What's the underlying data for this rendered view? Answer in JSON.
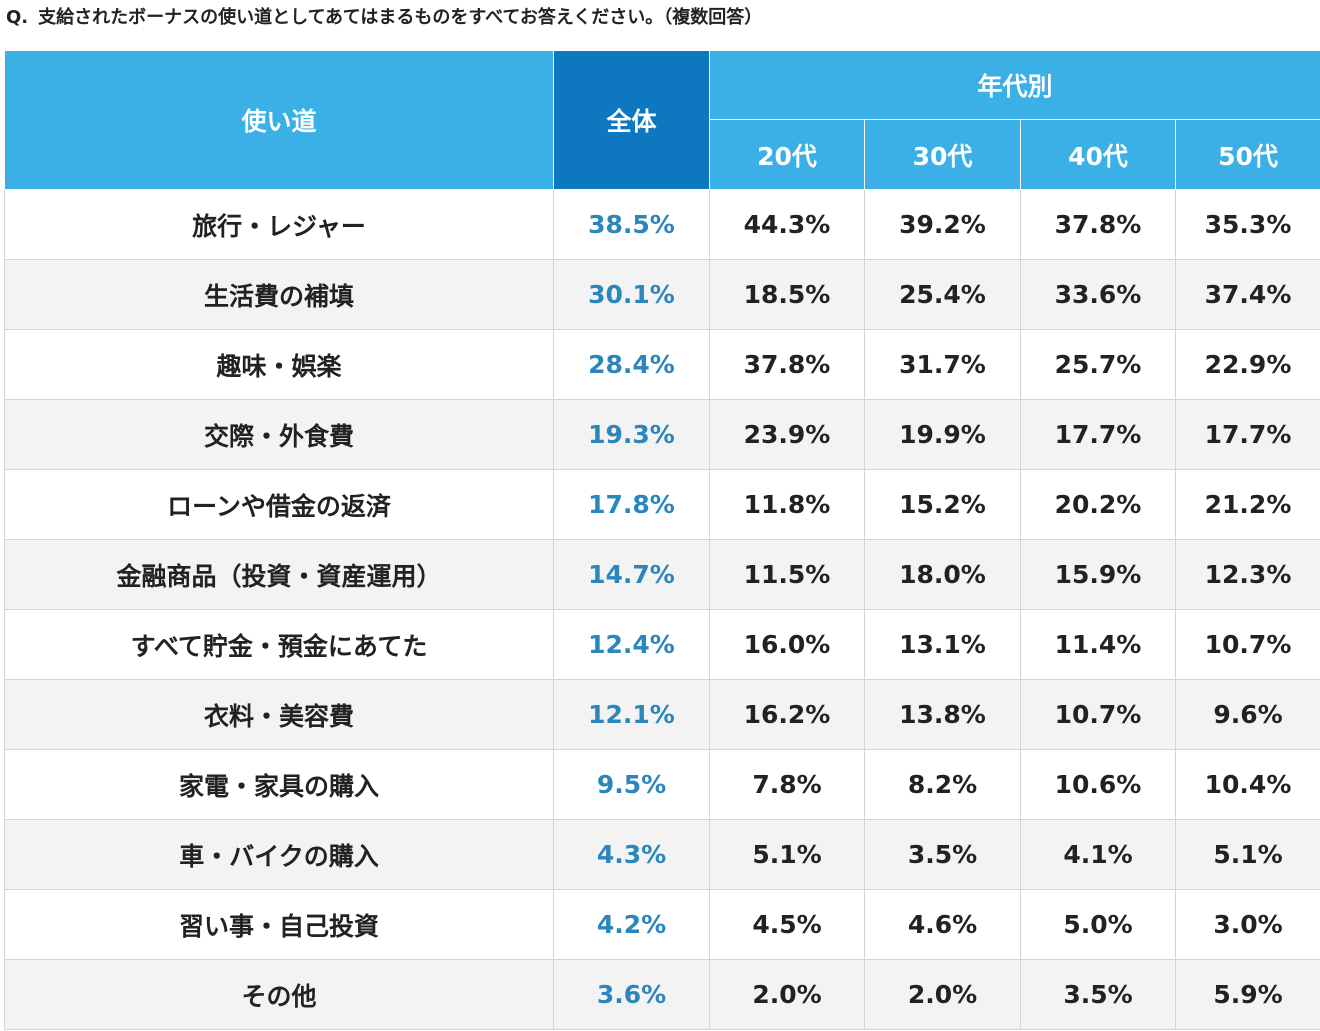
{
  "question": {
    "prefix": "Q.",
    "text": "支給されたボーナスの使い道としてあてはまるものをすべてお答えください。（複数回答）"
  },
  "table": {
    "headers": {
      "usage": "使い道",
      "total": "全体",
      "age_group": "年代別",
      "ages": [
        "20代",
        "30代",
        "40代",
        "50代"
      ]
    },
    "rows": [
      {
        "label": "旅行・レジャー",
        "total": "38.5%",
        "values": [
          "44.3%",
          "39.2%",
          "37.8%",
          "35.3%"
        ]
      },
      {
        "label": "生活費の補填",
        "total": "30.1%",
        "values": [
          "18.5%",
          "25.4%",
          "33.6%",
          "37.4%"
        ]
      },
      {
        "label": "趣味・娯楽",
        "total": "28.4%",
        "values": [
          "37.8%",
          "31.7%",
          "25.7%",
          "22.9%"
        ]
      },
      {
        "label": "交際・外食費",
        "total": "19.3%",
        "values": [
          "23.9%",
          "19.9%",
          "17.7%",
          "17.7%"
        ]
      },
      {
        "label": "ローンや借金の返済",
        "total": "17.8%",
        "values": [
          "11.8%",
          "15.2%",
          "20.2%",
          "21.2%"
        ]
      },
      {
        "label": "金融商品（投資・資産運用）",
        "total": "14.7%",
        "values": [
          "11.5%",
          "18.0%",
          "15.9%",
          "12.3%"
        ]
      },
      {
        "label": "すべて貯金・預金にあてた",
        "total": "12.4%",
        "values": [
          "16.0%",
          "13.1%",
          "11.4%",
          "10.7%"
        ]
      },
      {
        "label": "衣料・美容費",
        "total": "12.1%",
        "values": [
          "16.2%",
          "13.8%",
          "10.7%",
          "9.6%"
        ]
      },
      {
        "label": "家電・家具の購入",
        "total": "9.5%",
        "values": [
          "7.8%",
          "8.2%",
          "10.6%",
          "10.4%"
        ]
      },
      {
        "label": "車・バイクの購入",
        "total": "4.3%",
        "values": [
          "5.1%",
          "3.5%",
          "4.1%",
          "5.1%"
        ]
      },
      {
        "label": "習い事・自己投資",
        "total": "4.2%",
        "values": [
          "4.5%",
          "4.6%",
          "5.0%",
          "3.0%"
        ]
      },
      {
        "label": "その他",
        "total": "3.6%",
        "values": [
          "2.0%",
          "2.0%",
          "3.5%",
          "5.9%"
        ]
      }
    ]
  },
  "colors": {
    "header_blue": "#3ab0e6",
    "header_total_blue": "#0d78bf",
    "total_value_text": "#2a86bd",
    "row_alt_background": "#f3f3f3"
  }
}
